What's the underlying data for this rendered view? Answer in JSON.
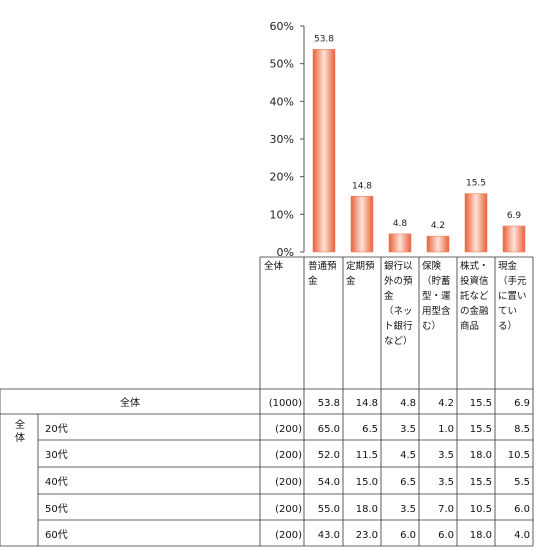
{
  "chart_data": {
    "type": "bar",
    "categories": [
      "普通預金",
      "定期預金",
      "銀行以外の預金（ネット銀行など）",
      "保険（貯蓄型・運用型含む）",
      "株式・投資信託などの金融商品",
      "現金（手元に置いている）"
    ],
    "category_headers": [
      "普通預\n金",
      "定期預\n金",
      "銀行以\n外の預\n金\n（ネッ\nト銀行\nなど）",
      "保険\n（貯蓄\n型・運\n用型含\nむ）",
      "株式・\n投資信\n託など\nの金融\n商品",
      "現金\n（手元\nに置い\nてい\nる）"
    ],
    "series": [
      {
        "values": [
          53.8,
          14.8,
          4.8,
          4.2,
          15.5,
          6.9
        ]
      }
    ],
    "data_labels": [
      "53.8",
      "14.8",
      "4.8",
      "4.2",
      "15.5",
      "6.9"
    ],
    "yticks": [
      "60%",
      "50%",
      "40%",
      "30%",
      "20%",
      "10%",
      "0%"
    ],
    "ylim": [
      0,
      60
    ],
    "bar_color": "#f08060",
    "grid": false,
    "legend": "none"
  },
  "table": {
    "header_all": "全体",
    "group_label": "全体",
    "rows": [
      {
        "label": "全体",
        "n": "(1000)",
        "values": [
          "53.8",
          "14.8",
          "4.8",
          "4.2",
          "15.5",
          "6.9"
        ]
      },
      {
        "label": "20代",
        "n": "(200)",
        "values": [
          "65.0",
          "6.5",
          "3.5",
          "1.0",
          "15.5",
          "8.5"
        ]
      },
      {
        "label": "30代",
        "n": "(200)",
        "values": [
          "52.0",
          "11.5",
          "4.5",
          "3.5",
          "18.0",
          "10.5"
        ]
      },
      {
        "label": "40代",
        "n": "(200)",
        "values": [
          "54.0",
          "15.0",
          "6.5",
          "3.5",
          "15.5",
          "5.5"
        ]
      },
      {
        "label": "50代",
        "n": "(200)",
        "values": [
          "55.0",
          "18.0",
          "3.5",
          "7.0",
          "10.5",
          "6.0"
        ]
      },
      {
        "label": "60代",
        "n": "(200)",
        "values": [
          "43.0",
          "23.0",
          "6.0",
          "6.0",
          "18.0",
          "4.0"
        ]
      }
    ]
  }
}
